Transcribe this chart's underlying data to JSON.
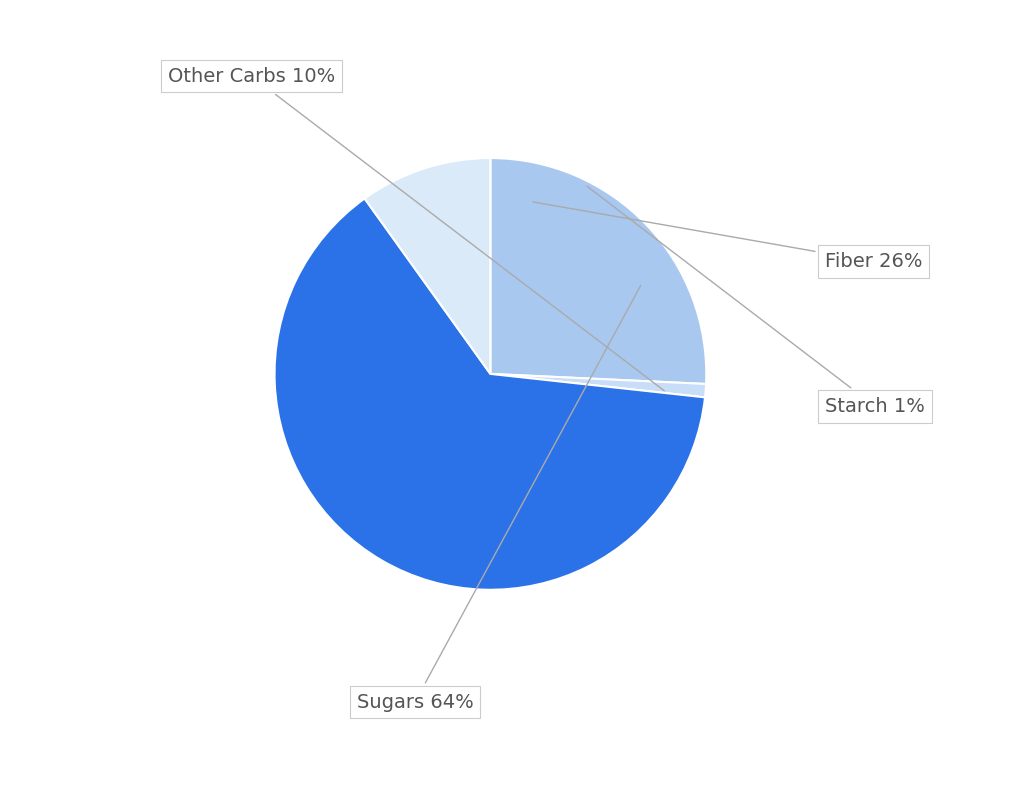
{
  "labels": [
    "Fiber",
    "Starch",
    "Sugars",
    "Other Carbs"
  ],
  "values": [
    26,
    1,
    64,
    10
  ],
  "colors": [
    "#a8c8f0",
    "#c8ddf8",
    "#2b72e8",
    "#daeaf8"
  ],
  "background_color": "#ffffff",
  "label_texts": [
    "Fiber 26%",
    "Starch 1%",
    "Sugars 64%",
    "Other Carbs 10%"
  ],
  "startangle": 90,
  "wedge_linewidth": 1.5,
  "wedge_linecolor": "#ffffff",
  "text_color": "#555555",
  "line_color": "#aaaaaa",
  "box_edge_color": "#cccccc",
  "font_size": 14
}
